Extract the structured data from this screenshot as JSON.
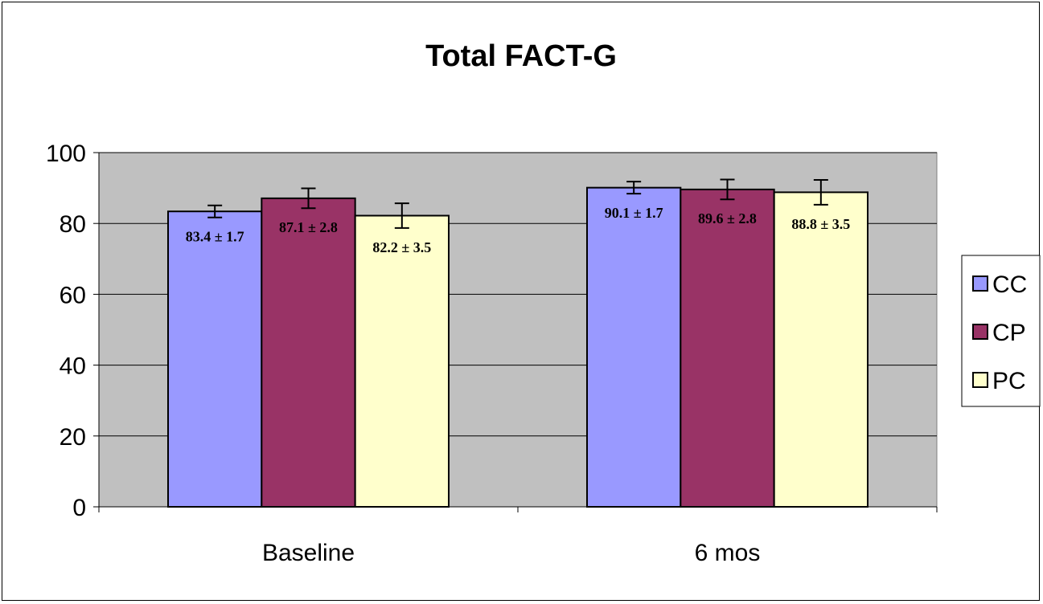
{
  "chart_data": {
    "type": "bar",
    "title": "Total FACT-G",
    "xlabel": "",
    "ylabel": "",
    "categories": [
      "Baseline",
      "6 mos"
    ],
    "series": [
      {
        "name": "CC",
        "color": "#9999ff",
        "values": [
          83.4,
          90.1
        ],
        "errors": [
          1.7,
          1.7
        ]
      },
      {
        "name": "CP",
        "color": "#993366",
        "values": [
          87.1,
          89.6
        ],
        "errors": [
          2.8,
          2.8
        ]
      },
      {
        "name": "PC",
        "color": "#ffffcc",
        "values": [
          82.2,
          88.8
        ],
        "errors": [
          3.5,
          3.5
        ]
      }
    ],
    "data_labels": [
      [
        "83.4 ± 1.7",
        "90.1 ± 1.7"
      ],
      [
        "87.1 ± 2.8",
        "89.6 ± 2.8"
      ],
      [
        "82.2 ± 3.5",
        "88.8 ± 3.5"
      ]
    ],
    "ylim": [
      0,
      100
    ],
    "yticks": [
      "0",
      "20",
      "40",
      "60",
      "80",
      "100"
    ],
    "grid": true,
    "plot_background": "#c0c0c0",
    "legend_position": "right"
  }
}
